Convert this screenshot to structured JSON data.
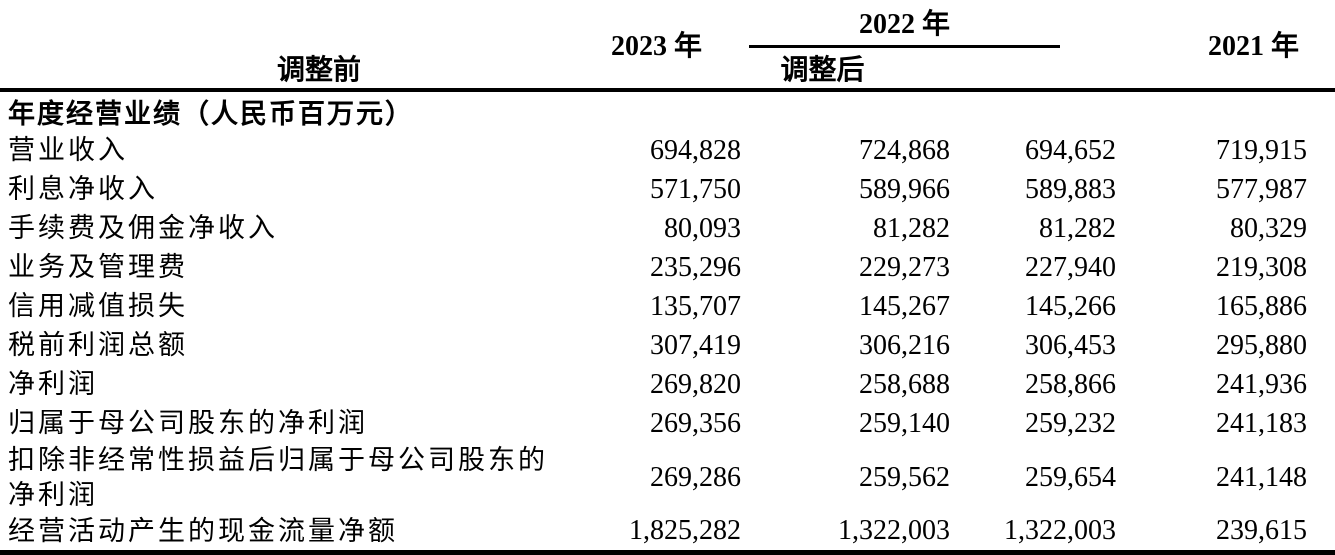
{
  "colors": {
    "background": "#ffffff",
    "text": "#000000",
    "rule": "#000000"
  },
  "table": {
    "header": {
      "col_2023": "2023 年",
      "col_2022_group": "2022 年",
      "col_2022_pre": "调整前",
      "col_2022_post": "调整后",
      "col_2021": "2021 年"
    },
    "section_title": "年度经营业绩（人民币百万元）",
    "rows": [
      {
        "label": "营业收入",
        "y2023": "694,828",
        "y2022_pre": "724,868",
        "y2022_post": "694,652",
        "y2021": "719,915"
      },
      {
        "label": "利息净收入",
        "y2023": "571,750",
        "y2022_pre": "589,966",
        "y2022_post": "589,883",
        "y2021": "577,987"
      },
      {
        "label": "手续费及佣金净收入",
        "y2023": "80,093",
        "y2022_pre": "81,282",
        "y2022_post": "81,282",
        "y2021": "80,329"
      },
      {
        "label": "业务及管理费",
        "y2023": "235,296",
        "y2022_pre": "229,273",
        "y2022_post": "227,940",
        "y2021": "219,308"
      },
      {
        "label": "信用减值损失",
        "y2023": "135,707",
        "y2022_pre": "145,267",
        "y2022_post": "145,266",
        "y2021": "165,886"
      },
      {
        "label": "税前利润总额",
        "y2023": "307,419",
        "y2022_pre": "306,216",
        "y2022_post": "306,453",
        "y2021": "295,880"
      },
      {
        "label": "净利润",
        "y2023": "269,820",
        "y2022_pre": "258,688",
        "y2022_post": "258,866",
        "y2021": "241,936"
      },
      {
        "label": "归属于母公司股东的净利润",
        "y2023": "269,356",
        "y2022_pre": "259,140",
        "y2022_post": "259,232",
        "y2021": "241,183"
      },
      {
        "label": "扣除非经常性损益后归属于母公司股东的净利润",
        "y2023": "269,286",
        "y2022_pre": "259,562",
        "y2022_post": "259,654",
        "y2021": "241,148"
      },
      {
        "label": "经营活动产生的现金流量净额",
        "y2023": "1,825,282",
        "y2022_pre": "1,322,003",
        "y2022_post": "1,322,003",
        "y2021": "239,615"
      }
    ]
  }
}
